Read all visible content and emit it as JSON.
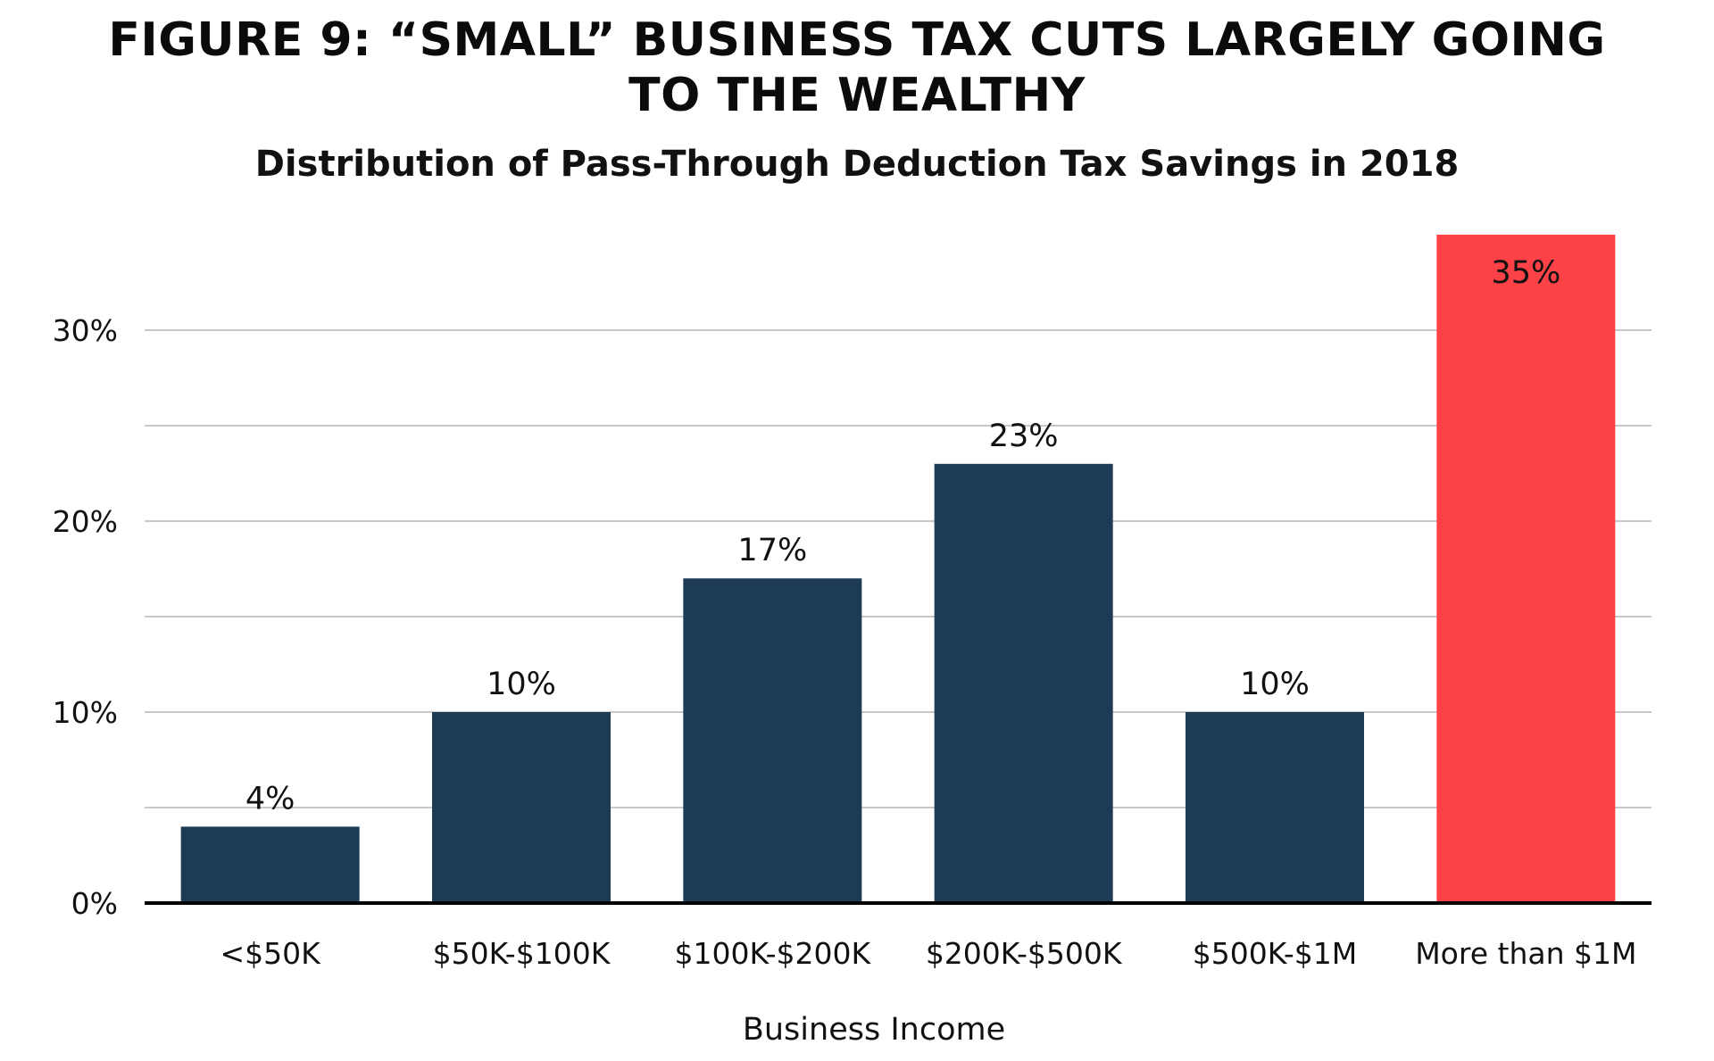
{
  "title": "FIGURE 9: “SMALL” BUSINESS TAX CUTS LARGELY GOING TO THE WEALTHY",
  "subtitle": "Distribution of Pass-Through Deduction Tax Savings in 2018",
  "colors": {
    "bar": "#1d3b55",
    "highlight": "#fc4247",
    "grid": "#c8c8c8",
    "axis": "#000000",
    "highlight_label": "#ffffff"
  },
  "chart_data": {
    "type": "bar",
    "title": "FIGURE 9: “SMALL” BUSINESS TAX CUTS LARGELY GOING TO THE WEALTHY",
    "subtitle": "Distribution of Pass-Through Deduction Tax Savings in 2018",
    "xlabel": "Business Income",
    "ylabel": "",
    "categories": [
      "<$50K",
      "$50K-$100K",
      "$100K-$200K",
      "$200K-$500K",
      "$500K-$1M",
      "More than $1M"
    ],
    "values": [
      4,
      10,
      17,
      23,
      10,
      35
    ],
    "labels": [
      "4%",
      "10%",
      "17%",
      "23%",
      "10%",
      "35%"
    ],
    "highlighted_category": "More than $1M",
    "ylim": [
      0,
      35
    ],
    "yticks": [
      0,
      10,
      20,
      30
    ],
    "ytick_labels": [
      "0%",
      "10%",
      "20%",
      "30%"
    ],
    "grid": true,
    "legend": "none"
  }
}
